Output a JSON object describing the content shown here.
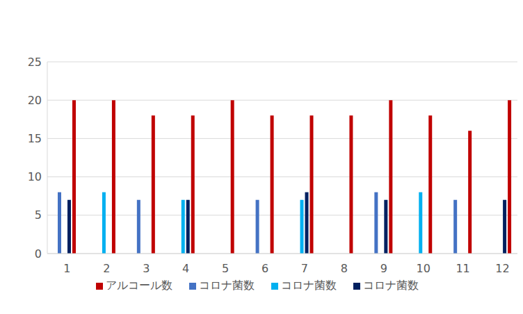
{
  "chart_data": {
    "type": "bar",
    "categories": [
      "1",
      "2",
      "3",
      "4",
      "5",
      "6",
      "7",
      "8",
      "9",
      "10",
      "11",
      "12"
    ],
    "series": [
      {
        "name": "コロナ菌数",
        "color": "#4472c4",
        "values": [
          8,
          null,
          7,
          null,
          null,
          7,
          null,
          null,
          8,
          null,
          7,
          null
        ]
      },
      {
        "name": "コロナ菌数",
        "color": "#00b0f0",
        "values": [
          null,
          8,
          null,
          7,
          null,
          null,
          7,
          null,
          null,
          8,
          null,
          null
        ]
      },
      {
        "name": "コロナ菌数",
        "color": "#002060",
        "values": [
          7,
          null,
          null,
          7,
          null,
          null,
          8,
          null,
          7,
          null,
          null,
          7
        ]
      },
      {
        "name": "アルコール数",
        "color": "#c00000",
        "values": [
          20,
          20,
          18,
          18,
          20,
          18,
          18,
          18,
          20,
          18,
          16,
          20
        ]
      }
    ],
    "ylim": [
      0,
      25
    ],
    "yticks": [
      0,
      5,
      10,
      15,
      20,
      25
    ],
    "grid": true,
    "legend": "bottom"
  }
}
